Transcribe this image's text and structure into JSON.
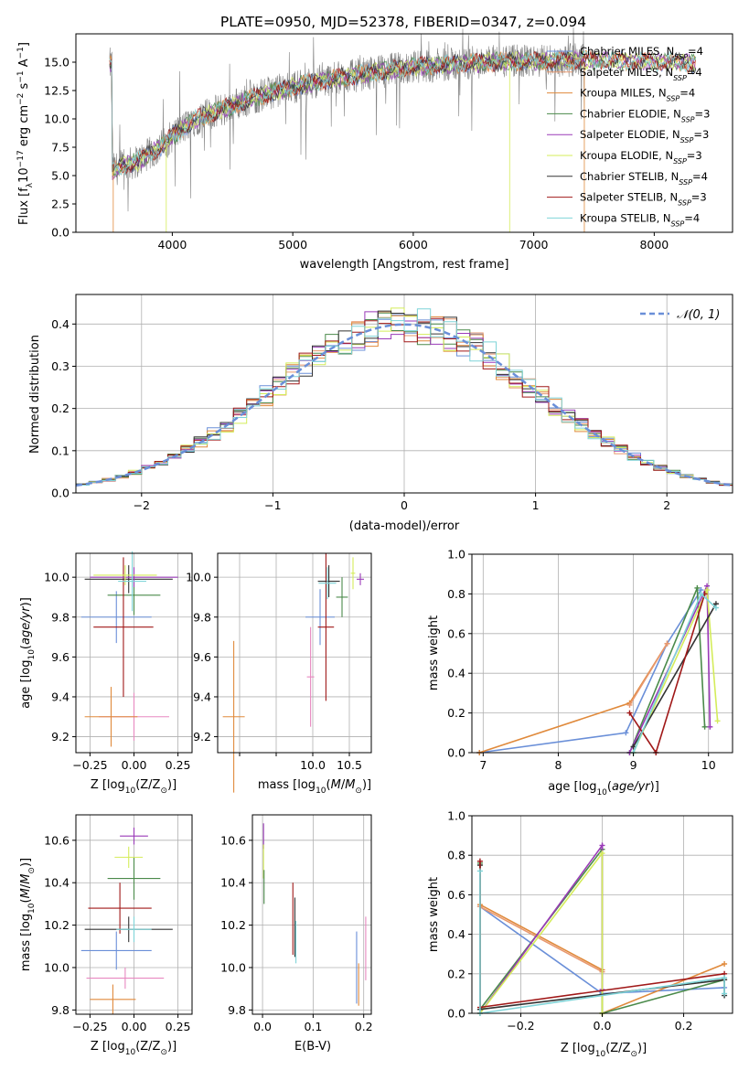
{
  "title": "PLATE=0950, MJD=52378, FIBERID=0347, z=0.094",
  "colors": {
    "chabrier_miles": "#6a8fd8",
    "salpeter_miles": "#e8986f",
    "kroupa_miles": "#e08a3c",
    "chabrier_elodie": "#4a8a4a",
    "salpeter_elodie": "#9a3ab8",
    "kroupa_elodie": "#d4ec5a",
    "chabrier_stelib": "#333333",
    "salpeter_stelib": "#a01818",
    "kroupa_stelib": "#7fd4d8",
    "pink": "#e888c0",
    "grid": "#b0b0b0",
    "data_gray": "#808080"
  },
  "chart_data": [
    {
      "id": "spectrum",
      "type": "line",
      "xlabel": "wavelength [Angstrom, rest frame]",
      "xlim": [
        3200,
        8650
      ],
      "ylim": [
        0,
        17.5
      ],
      "xticks": [
        4000,
        5000,
        6000,
        7000,
        8000
      ],
      "yticks": [
        0.0,
        2.5,
        5.0,
        7.5,
        10.0,
        12.5,
        15.0
      ],
      "legend_position": "right",
      "legend": [
        {
          "label": "Chabrier MILES, N",
          "sub": "SSP",
          "suffix": "=4",
          "color": "#6a8fd8"
        },
        {
          "label": "Salpeter MILES, N",
          "sub": "SSP",
          "suffix": "=4",
          "color": "#e8986f"
        },
        {
          "label": "Kroupa MILES, N",
          "sub": "SSP",
          "suffix": "=4",
          "color": "#e08a3c"
        },
        {
          "label": "Chabrier ELODIE, N",
          "sub": "SSP",
          "suffix": "=3",
          "color": "#4a8a4a"
        },
        {
          "label": "Salpeter ELODIE, N",
          "sub": "SSP",
          "suffix": "=3",
          "color": "#9a3ab8"
        },
        {
          "label": "Kroupa ELODIE, N",
          "sub": "SSP",
          "suffix": "=3",
          "color": "#d4ec5a"
        },
        {
          "label": "Chabrier STELIB, N",
          "sub": "SSP",
          "suffix": "=4",
          "color": "#333333"
        },
        {
          "label": "Salpeter STELIB, N",
          "sub": "SSP",
          "suffix": "=3",
          "color": "#a01818"
        },
        {
          "label": "Kroupa STELIB, N",
          "sub": "SSP",
          "suffix": "=4",
          "color": "#7fd4d8"
        }
      ],
      "continuum": [
        [
          3500,
          5.5
        ],
        [
          3700,
          6.2
        ],
        [
          3900,
          7.5
        ],
        [
          4000,
          8.5
        ],
        [
          4200,
          10.0
        ],
        [
          4500,
          11.2
        ],
        [
          4800,
          12.3
        ],
        [
          5000,
          12.8
        ],
        [
          5200,
          13.3
        ],
        [
          5500,
          13.8
        ],
        [
          5800,
          14.3
        ],
        [
          6000,
          14.6
        ],
        [
          6300,
          14.8
        ],
        [
          6600,
          15.0
        ],
        [
          7000,
          15.1
        ],
        [
          7400,
          15.2
        ],
        [
          7800,
          15.1
        ],
        [
          8200,
          15.0
        ],
        [
          8350,
          14.8
        ]
      ],
      "data_range": [
        3480,
        7420
      ],
      "model_range": [
        3480,
        8350
      ]
    },
    {
      "id": "residuals",
      "type": "bar",
      "xlabel": "(data-model)/error",
      "ylabel": "Normed distribution",
      "xlim": [
        -2.5,
        2.5
      ],
      "ylim": [
        0,
        0.47
      ],
      "xticks": [
        -2,
        -1,
        0,
        1,
        2
      ],
      "yticks": [
        0.0,
        0.1,
        0.2,
        0.3,
        0.4
      ],
      "grid": true,
      "legend_position": "top-right",
      "legend": [
        {
          "label": "𝒩(0, 1)",
          "color": "#6a8fd8",
          "style": "dashed"
        }
      ]
    },
    {
      "id": "age_vs_Z",
      "type": "scatter",
      "xlabel_main": "Z [log",
      "xlabel_sub": "10",
      "xlabel_rest": "(Z/Z",
      "ylabel": "age  [log10(age/yr)]",
      "xlim": [
        -0.33,
        0.33
      ],
      "ylim": [
        9.12,
        10.12
      ],
      "xticks": [
        -0.25,
        0.0,
        0.25
      ],
      "xticklabels": [
        "−0.25",
        "0.00",
        "0.25"
      ],
      "yticks": [
        9.2,
        9.4,
        9.6,
        9.8,
        10.0
      ],
      "grid": true,
      "points": [
        {
          "x": -0.1,
          "xerr": 0.2,
          "y": 9.8,
          "yerr": 0.13,
          "color": "#6a8fd8"
        },
        {
          "x": 0.0,
          "xerr": 0.2,
          "y": 9.3,
          "yerr": 0.12,
          "color": "#e888c0"
        },
        {
          "x": -0.13,
          "xerr": 0.15,
          "y": 9.3,
          "yerr": 0.15,
          "color": "#e08a3c"
        },
        {
          "x": 0.0,
          "xerr": 0.15,
          "y": 9.91,
          "yerr": 0.1,
          "color": "#4a8a4a"
        },
        {
          "x": -0.06,
          "xerr": 0.17,
          "y": 9.75,
          "yerr": 0.35,
          "color": "#a01818"
        },
        {
          "x": -0.03,
          "xerr": 0.25,
          "y": 9.99,
          "yerr": 0.07,
          "color": "#333333"
        },
        {
          "x": 0.0,
          "xerr": 0.25,
          "y": 10.0,
          "yerr": 0.05,
          "color": "#9a3ab8"
        },
        {
          "x": -0.05,
          "xerr": 0.18,
          "y": 10.01,
          "yerr": 0.05,
          "color": "#d4ec5a"
        },
        {
          "x": -0.01,
          "xerr": 0.08,
          "y": 9.98,
          "yerr": 0.15,
          "color": "#7fd4d8"
        }
      ]
    },
    {
      "id": "age_vs_mass",
      "type": "scatter",
      "xlabel": "mass [log10(M/M☉)]",
      "xlim": [
        8.7,
        10.8
      ],
      "ylim": [
        9.12,
        10.12
      ],
      "xticks": [
        9.0,
        9.5,
        10.0,
        10.5
      ],
      "xticklabels": [
        "",
        "",
        "10.0",
        "10.5"
      ],
      "yticks": [
        9.2,
        9.4,
        9.6,
        9.8,
        10.0
      ],
      "grid": true,
      "points": [
        {
          "x": 10.1,
          "xerr": 0.2,
          "y": 9.8,
          "yerr": 0.14,
          "color": "#6a8fd8"
        },
        {
          "x": 9.97,
          "xerr": 0.05,
          "y": 9.5,
          "yerr": 0.25,
          "color": "#e888c0"
        },
        {
          "x": 8.92,
          "xerr": 0.15,
          "y": 9.3,
          "yerr": 0.38,
          "color": "#e08a3c"
        },
        {
          "x": 10.4,
          "xerr": 0.08,
          "y": 9.9,
          "yerr": 0.1,
          "color": "#4a8a4a"
        },
        {
          "x": 10.18,
          "xerr": 0.11,
          "y": 9.75,
          "yerr": 0.37,
          "color": "#a01818"
        },
        {
          "x": 10.22,
          "xerr": 0.15,
          "y": 9.98,
          "yerr": 0.08,
          "color": "#333333"
        },
        {
          "x": 10.65,
          "xerr": 0.05,
          "y": 9.99,
          "yerr": 0.03,
          "color": "#9a3ab8"
        },
        {
          "x": 10.55,
          "xerr": 0.03,
          "y": 10.02,
          "yerr": 0.08,
          "color": "#d4ec5a"
        },
        {
          "x": 10.2,
          "xerr": 0.12,
          "y": 9.97,
          "yerr": 0.08,
          "color": "#7fd4d8"
        }
      ]
    },
    {
      "id": "weight_vs_age",
      "type": "line",
      "xlabel": "age  [log10(age/yr)]",
      "ylabel": "mass weight",
      "xlim": [
        6.85,
        10.32
      ],
      "ylim": [
        0,
        1.0
      ],
      "xticks": [
        7,
        8,
        9,
        10
      ],
      "yticks": [
        0.0,
        0.2,
        0.4,
        0.6,
        0.8,
        1.0
      ],
      "grid": true,
      "series": [
        {
          "color": "#6a8fd8",
          "points": [
            [
              6.95,
              0.0
            ],
            [
              8.9,
              0.1
            ],
            [
              9.45,
              0.55
            ],
            [
              9.9,
              0.82
            ]
          ]
        },
        {
          "color": "#e08a3c",
          "points": [
            [
              6.95,
              0.0
            ],
            [
              8.95,
              0.25
            ],
            [
              9.45,
              0.55
            ]
          ]
        },
        {
          "color": "#e8986f",
          "points": [
            [
              8.95,
              0.24
            ],
            [
              9.45,
              0.55
            ]
          ]
        },
        {
          "color": "#4a8a4a",
          "points": [
            [
              8.95,
              0.0
            ],
            [
              9.85,
              0.83
            ],
            [
              9.95,
              0.13
            ]
          ]
        },
        {
          "color": "#9a3ab8",
          "points": [
            [
              8.95,
              0.0
            ],
            [
              9.98,
              0.84
            ],
            [
              10.02,
              0.13
            ]
          ]
        },
        {
          "color": "#d4ec5a",
          "points": [
            [
              9.0,
              0.0
            ],
            [
              9.98,
              0.82
            ],
            [
              10.12,
              0.16
            ]
          ]
        },
        {
          "color": "#333333",
          "points": [
            [
              9.0,
              0.03
            ],
            [
              10.1,
              0.75
            ]
          ]
        },
        {
          "color": "#a01818",
          "points": [
            [
              8.95,
              0.2
            ],
            [
              9.3,
              0.0
            ],
            [
              9.95,
              0.8
            ]
          ]
        },
        {
          "color": "#7fd4d8",
          "points": [
            [
              9.0,
              0.0
            ],
            [
              9.9,
              0.8
            ],
            [
              10.1,
              0.73
            ]
          ]
        }
      ]
    },
    {
      "id": "mass_vs_Z",
      "type": "scatter",
      "xlabel_main": "Z [log",
      "xlabel_sub": "10",
      "xlabel_rest": "(Z/Z",
      "ylabel": "mass [log10(M/M☉)]",
      "xlim": [
        -0.33,
        0.33
      ],
      "ylim": [
        9.78,
        10.72
      ],
      "xticks": [
        -0.25,
        0.0,
        0.25
      ],
      "xticklabels": [
        "−0.25",
        "0.00",
        "0.25"
      ],
      "yticks": [
        9.8,
        10.0,
        10.2,
        10.4,
        10.6
      ],
      "grid": true,
      "points": [
        {
          "x": -0.1,
          "xerr": 0.2,
          "y": 10.08,
          "yerr": 0.09,
          "color": "#6a8fd8"
        },
        {
          "x": -0.05,
          "xerr": 0.22,
          "y": 9.95,
          "yerr": 0.05,
          "color": "#e888c0"
        },
        {
          "x": -0.12,
          "xerr": 0.13,
          "y": 9.85,
          "yerr": 0.07,
          "color": "#e08a3c"
        },
        {
          "x": 0.0,
          "xerr": 0.15,
          "y": 10.42,
          "yerr": 0.1,
          "color": "#4a8a4a"
        },
        {
          "x": -0.08,
          "xerr": 0.18,
          "y": 10.28,
          "yerr": 0.12,
          "color": "#a01818"
        },
        {
          "x": -0.03,
          "xerr": 0.25,
          "y": 10.18,
          "yerr": 0.06,
          "color": "#333333"
        },
        {
          "x": 0.0,
          "xerr": 0.08,
          "y": 10.62,
          "yerr": 0.04,
          "color": "#9a3ab8"
        },
        {
          "x": -0.03,
          "xerr": 0.08,
          "y": 10.52,
          "yerr": 0.05,
          "color": "#d4ec5a"
        },
        {
          "x": 0.0,
          "xerr": 0.1,
          "y": 10.18,
          "yerr": 0.06,
          "color": "#7fd4d8"
        }
      ]
    },
    {
      "id": "mass_vs_EBV",
      "type": "scatter",
      "xlabel": "E(B-V)",
      "xlim": [
        -0.02,
        0.215
      ],
      "ylim": [
        9.78,
        10.72
      ],
      "xticks": [
        0.0,
        0.1,
        0.2
      ],
      "yticks": [
        9.8,
        10.0,
        10.2,
        10.4,
        10.6
      ],
      "grid": true,
      "points": [
        {
          "x": 0.002,
          "y": 10.62,
          "yerr": 0.06,
          "color": "#9a3ab8"
        },
        {
          "x": 0.002,
          "y": 10.5,
          "yerr": 0.08,
          "color": "#d4ec5a"
        },
        {
          "x": 0.003,
          "y": 10.38,
          "yerr": 0.08,
          "color": "#4a8a4a"
        },
        {
          "x": 0.06,
          "y": 10.23,
          "yerr": 0.17,
          "color": "#a01818"
        },
        {
          "x": 0.064,
          "y": 10.19,
          "yerr": 0.14,
          "color": "#333333"
        },
        {
          "x": 0.066,
          "y": 10.12,
          "yerr": 0.1,
          "color": "#7fd4d8"
        },
        {
          "x": 0.186,
          "y": 10.0,
          "yerr": 0.17,
          "color": "#6a8fd8"
        },
        {
          "x": 0.19,
          "y": 9.92,
          "yerr": 0.1,
          "color": "#e08a3c"
        },
        {
          "x": 0.204,
          "y": 10.09,
          "yerr": 0.15,
          "color": "#e888c0"
        }
      ]
    },
    {
      "id": "weight_vs_Z",
      "type": "line",
      "xlabel_main": "Z [log",
      "xlabel_sub": "10",
      "xlabel_rest": "(Z/Z",
      "ylabel": "mass weight",
      "xlim": [
        -0.32,
        0.32
      ],
      "ylim": [
        0,
        1.0
      ],
      "xticks": [
        -0.2,
        0.0,
        0.2
      ],
      "xticklabels": [
        "−0.2",
        "0.0",
        "0.2"
      ],
      "yticks": [
        0.0,
        0.2,
        0.4,
        0.6,
        0.8,
        1.0
      ],
      "grid": true,
      "series": [
        {
          "color": "#6a8fd8",
          "points": [
            [
              -0.3,
              0.54
            ],
            [
              0.0,
              0.1
            ],
            [
              0.3,
              0.13
            ]
          ]
        },
        {
          "color": "#e08a3c",
          "points": [
            [
              -0.3,
              0.55
            ],
            [
              0.0,
              0.22
            ],
            [
              0.0,
              0.0
            ],
            [
              0.3,
              0.25
            ]
          ]
        },
        {
          "color": "#e8986f",
          "points": [
            [
              -0.3,
              0.54
            ],
            [
              0.0,
              0.21
            ]
          ]
        },
        {
          "color": "#4a8a4a",
          "points": [
            [
              -0.3,
              0.76
            ],
            [
              -0.3,
              0.02
            ],
            [
              0.0,
              0.83
            ],
            [
              0.0,
              0.0
            ],
            [
              0.3,
              0.17
            ]
          ]
        },
        {
          "color": "#9a3ab8",
          "points": [
            [
              -0.3,
              0.0
            ],
            [
              0.0,
              0.85
            ],
            [
              0.0,
              0.12
            ]
          ]
        },
        {
          "color": "#d4ec5a",
          "points": [
            [
              -0.3,
              0.0
            ],
            [
              0.0,
              0.81
            ],
            [
              0.0,
              0.0
            ]
          ]
        },
        {
          "color": "#333333",
          "points": [
            [
              -0.3,
              0.75
            ],
            [
              -0.3,
              0.02
            ],
            [
              0.3,
              0.17
            ],
            [
              0.3,
              0.09
            ]
          ]
        },
        {
          "color": "#a01818",
          "points": [
            [
              -0.3,
              0.77
            ],
            [
              -0.3,
              0.03
            ],
            [
              0.3,
              0.2
            ]
          ]
        },
        {
          "color": "#7fd4d8",
          "points": [
            [
              -0.3,
              0.72
            ],
            [
              -0.3,
              0.0
            ],
            [
              0.3,
              0.18
            ],
            [
              0.3,
              0.1
            ]
          ]
        }
      ]
    }
  ]
}
